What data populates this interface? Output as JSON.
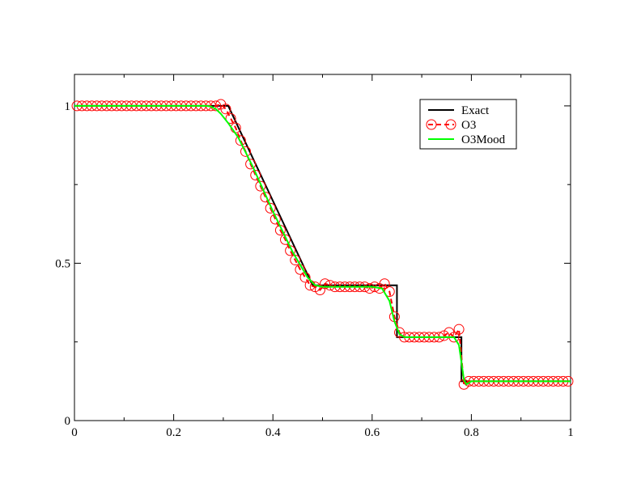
{
  "chart_data": {
    "type": "line",
    "title": "",
    "xlabel": "",
    "ylabel": "",
    "xlim": [
      0,
      1
    ],
    "ylim": [
      0,
      1.1
    ],
    "x_ticks": [
      "0",
      "0.2",
      "0.4",
      "0.6",
      "0.8",
      "1"
    ],
    "y_ticks": [
      "0",
      "0.5",
      "1"
    ],
    "legend_placement": "top-right",
    "series": [
      {
        "name": "Exact",
        "color": "#000000",
        "style": "step line",
        "points": [
          [
            0,
            1.0
          ],
          [
            0.31,
            1.0
          ],
          [
            0.48,
            0.43
          ],
          [
            0.65,
            0.43
          ],
          [
            0.65,
            0.265
          ],
          [
            0.78,
            0.265
          ],
          [
            0.78,
            0.125
          ],
          [
            1.0,
            0.125
          ]
        ]
      },
      {
        "name": "O3",
        "color": "#ff0000",
        "style": "dashed line with open circle markers",
        "points": [
          [
            0.005,
            1.0
          ],
          [
            0.015,
            1.0
          ],
          [
            0.025,
            1.0
          ],
          [
            0.035,
            1.0
          ],
          [
            0.045,
            1.0
          ],
          [
            0.055,
            1.0
          ],
          [
            0.065,
            1.0
          ],
          [
            0.075,
            1.0
          ],
          [
            0.085,
            1.0
          ],
          [
            0.095,
            1.0
          ],
          [
            0.105,
            1.0
          ],
          [
            0.115,
            1.0
          ],
          [
            0.125,
            1.0
          ],
          [
            0.135,
            1.0
          ],
          [
            0.145,
            1.0
          ],
          [
            0.155,
            1.0
          ],
          [
            0.165,
            1.0
          ],
          [
            0.175,
            1.0
          ],
          [
            0.185,
            1.0
          ],
          [
            0.195,
            1.0
          ],
          [
            0.205,
            1.0
          ],
          [
            0.215,
            1.0
          ],
          [
            0.225,
            1.0
          ],
          [
            0.235,
            1.0
          ],
          [
            0.245,
            1.0
          ],
          [
            0.255,
            1.0
          ],
          [
            0.265,
            1.0
          ],
          [
            0.275,
            1.0
          ],
          [
            0.285,
            1.0
          ],
          [
            0.295,
            1.005
          ],
          [
            0.305,
            0.99
          ],
          [
            0.315,
            0.96
          ],
          [
            0.325,
            0.93
          ],
          [
            0.335,
            0.89
          ],
          [
            0.345,
            0.855
          ],
          [
            0.355,
            0.815
          ],
          [
            0.365,
            0.78
          ],
          [
            0.375,
            0.745
          ],
          [
            0.385,
            0.71
          ],
          [
            0.395,
            0.675
          ],
          [
            0.405,
            0.64
          ],
          [
            0.415,
            0.605
          ],
          [
            0.425,
            0.575
          ],
          [
            0.435,
            0.54
          ],
          [
            0.445,
            0.51
          ],
          [
            0.455,
            0.48
          ],
          [
            0.465,
            0.455
          ],
          [
            0.475,
            0.43
          ],
          [
            0.485,
            0.425
          ],
          [
            0.495,
            0.415
          ],
          [
            0.505,
            0.435
          ],
          [
            0.515,
            0.43
          ],
          [
            0.525,
            0.425
          ],
          [
            0.535,
            0.425
          ],
          [
            0.545,
            0.425
          ],
          [
            0.555,
            0.425
          ],
          [
            0.565,
            0.425
          ],
          [
            0.575,
            0.425
          ],
          [
            0.585,
            0.425
          ],
          [
            0.595,
            0.42
          ],
          [
            0.605,
            0.425
          ],
          [
            0.615,
            0.42
          ],
          [
            0.625,
            0.435
          ],
          [
            0.635,
            0.41
          ],
          [
            0.645,
            0.33
          ],
          [
            0.655,
            0.28
          ],
          [
            0.665,
            0.265
          ],
          [
            0.675,
            0.265
          ],
          [
            0.685,
            0.265
          ],
          [
            0.695,
            0.265
          ],
          [
            0.705,
            0.265
          ],
          [
            0.715,
            0.265
          ],
          [
            0.725,
            0.265
          ],
          [
            0.735,
            0.265
          ],
          [
            0.745,
            0.27
          ],
          [
            0.755,
            0.28
          ],
          [
            0.765,
            0.265
          ],
          [
            0.775,
            0.29
          ],
          [
            0.785,
            0.115
          ],
          [
            0.795,
            0.125
          ],
          [
            0.805,
            0.125
          ],
          [
            0.815,
            0.125
          ],
          [
            0.825,
            0.125
          ],
          [
            0.835,
            0.125
          ],
          [
            0.845,
            0.125
          ],
          [
            0.855,
            0.125
          ],
          [
            0.865,
            0.125
          ],
          [
            0.875,
            0.125
          ],
          [
            0.885,
            0.125
          ],
          [
            0.895,
            0.125
          ],
          [
            0.905,
            0.125
          ],
          [
            0.915,
            0.125
          ],
          [
            0.925,
            0.125
          ],
          [
            0.935,
            0.125
          ],
          [
            0.945,
            0.125
          ],
          [
            0.955,
            0.125
          ],
          [
            0.965,
            0.125
          ],
          [
            0.975,
            0.125
          ],
          [
            0.985,
            0.125
          ],
          [
            0.995,
            0.125
          ]
        ]
      },
      {
        "name": "O3Mood",
        "color": "#00ff00",
        "style": "solid line",
        "points": [
          [
            0,
            1.0
          ],
          [
            0.265,
            1.0
          ],
          [
            0.275,
            0.998
          ],
          [
            0.285,
            0.99
          ],
          [
            0.295,
            0.975
          ],
          [
            0.31,
            0.945
          ],
          [
            0.33,
            0.9
          ],
          [
            0.36,
            0.805
          ],
          [
            0.4,
            0.665
          ],
          [
            0.44,
            0.535
          ],
          [
            0.47,
            0.455
          ],
          [
            0.485,
            0.43
          ],
          [
            0.5,
            0.425
          ],
          [
            0.6,
            0.425
          ],
          [
            0.62,
            0.42
          ],
          [
            0.635,
            0.38
          ],
          [
            0.645,
            0.315
          ],
          [
            0.655,
            0.275
          ],
          [
            0.665,
            0.265
          ],
          [
            0.765,
            0.265
          ],
          [
            0.775,
            0.24
          ],
          [
            0.785,
            0.13
          ],
          [
            0.79,
            0.115
          ],
          [
            0.8,
            0.125
          ],
          [
            1.0,
            0.125
          ]
        ]
      }
    ]
  }
}
